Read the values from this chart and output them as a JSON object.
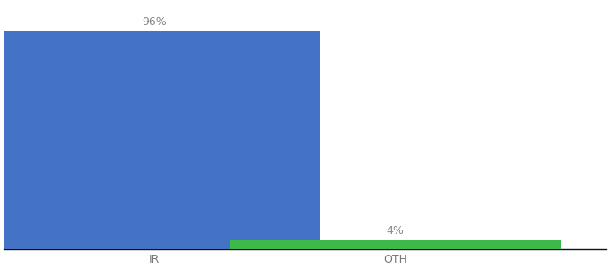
{
  "categories": [
    "IR",
    "OTH"
  ],
  "values": [
    96,
    4
  ],
  "bar_colors": [
    "#4472c4",
    "#3db84a"
  ],
  "label_texts": [
    "96%",
    "4%"
  ],
  "background_color": "#ffffff",
  "ylim": [
    0,
    108
  ],
  "bar_width": 0.55,
  "label_fontsize": 9,
  "tick_fontsize": 9,
  "tick_color": "#777777",
  "axis_line_color": "#111111",
  "x_positions": [
    0.25,
    0.65
  ],
  "xlim": [
    0.0,
    1.0
  ]
}
